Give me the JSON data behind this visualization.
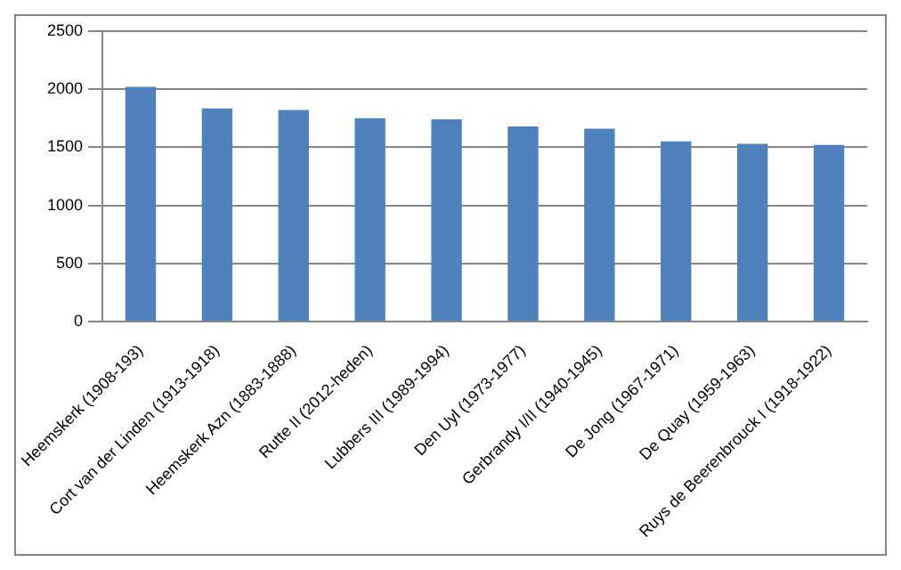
{
  "chart_data": {
    "type": "bar",
    "categories": [
      "Heemskerk (1908-193)",
      "Cort van der Linden (1913-1918)",
      "Heemskerk Azn (1883-1888)",
      "Rutte II (2012-heden)",
      "Lubbers III (1989-1994)",
      "Den Uyl (1973-1977)",
      "Gerbrandy I/II (1940-1945)",
      "De Jong (1967-1971)",
      "De Quay (1959-1963)",
      "Ruys de Beerenbrouck I (1918-1922)"
    ],
    "values": [
      2020,
      1835,
      1820,
      1750,
      1740,
      1680,
      1660,
      1550,
      1530,
      1520
    ],
    "color": "#4f81bd",
    "ylim": [
      0,
      2500
    ],
    "yticks": [
      0,
      500,
      1000,
      1500,
      2000,
      2500
    ],
    "grid": "y"
  }
}
